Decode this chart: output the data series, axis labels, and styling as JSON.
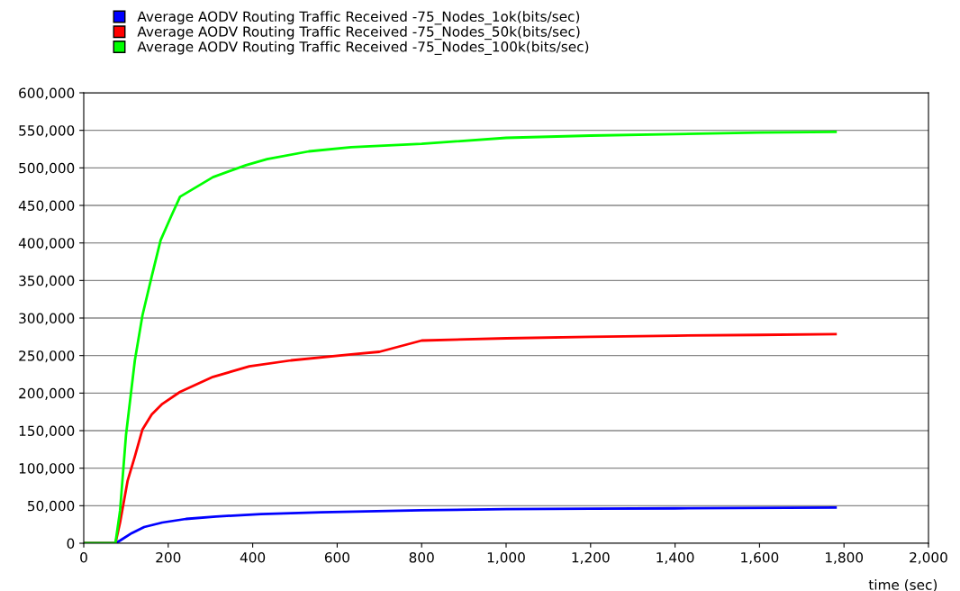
{
  "chart_data": {
    "type": "line",
    "xlabel": "time (sec)",
    "xlim": [
      0,
      2000
    ],
    "ylim": [
      0,
      600000
    ],
    "xticks": [
      0,
      200,
      400,
      600,
      800,
      {
        "value": 1000,
        "label": "1,000"
      },
      {
        "value": 1200,
        "label": "1,200"
      },
      {
        "value": 1400,
        "label": "1,400"
      },
      {
        "value": 1600,
        "label": "1,600"
      },
      {
        "value": 1800,
        "label": "1,800"
      },
      {
        "value": 2000,
        "label": "2,000"
      }
    ],
    "yticks": [
      0,
      {
        "value": 50000,
        "label": "50,000"
      },
      {
        "value": 100000,
        "label": "100,000"
      },
      {
        "value": 150000,
        "label": "150,000"
      },
      {
        "value": 200000,
        "label": "200,000"
      },
      {
        "value": 250000,
        "label": "250,000"
      },
      {
        "value": 300000,
        "label": "300,000"
      },
      {
        "value": 350000,
        "label": "350,000"
      },
      {
        "value": 400000,
        "label": "400,000"
      },
      {
        "value": 450000,
        "label": "450,000"
      },
      {
        "value": 500000,
        "label": "500,000"
      },
      {
        "value": 550000,
        "label": "550,000"
      },
      {
        "value": 600000,
        "label": "600,000"
      }
    ],
    "grid": "y",
    "legend": "top left",
    "marker": "none",
    "line_style": "solid",
    "series": [
      {
        "name": "Average AODV Routing Traffic Received -75_Nodes_1ok(bits/sec)",
        "color": "#0000ff",
        "x": [
          0,
          75,
          86,
          114,
          143,
          186,
          242,
          313,
          420,
          562,
          800,
          1000,
          1200,
          1400,
          1780
        ],
        "values": [
          0,
          0,
          3600,
          13600,
          21600,
          27600,
          32400,
          35600,
          38800,
          41200,
          44000,
          45500,
          46000,
          46500,
          47500
        ]
      },
      {
        "name": "Average AODV Routing Traffic Received -75_Nodes_50k(bits/sec)",
        "color": "#ff0000",
        "x": [
          0,
          75,
          86,
          104,
          121,
          139,
          161,
          186,
          228,
          306,
          392,
          491,
          633,
          700,
          800,
          1000,
          1200,
          1400,
          1600,
          1780
        ],
        "values": [
          0,
          0,
          27600,
          83600,
          115600,
          151600,
          171600,
          185600,
          201600,
          221600,
          235600,
          243600,
          251600,
          255000,
          270000,
          273000,
          275000,
          276500,
          277500,
          278500
        ]
      },
      {
        "name": "Average AODV Routing Traffic Received -75_Nodes_100k(bits/sec)",
        "color": "#00ff00",
        "x": [
          0,
          75,
          86,
          100,
          121,
          139,
          161,
          182,
          207,
          228,
          306,
          384,
          434,
          533,
          633,
          800,
          1000,
          1200,
          1400,
          1600,
          1780
        ],
        "values": [
          0,
          0,
          43600,
          144000,
          243600,
          303600,
          355600,
          403600,
          435600,
          461600,
          487600,
          503600,
          511600,
          522000,
          527600,
          532000,
          540000,
          543000,
          545000,
          547000,
          548000
        ]
      }
    ]
  }
}
